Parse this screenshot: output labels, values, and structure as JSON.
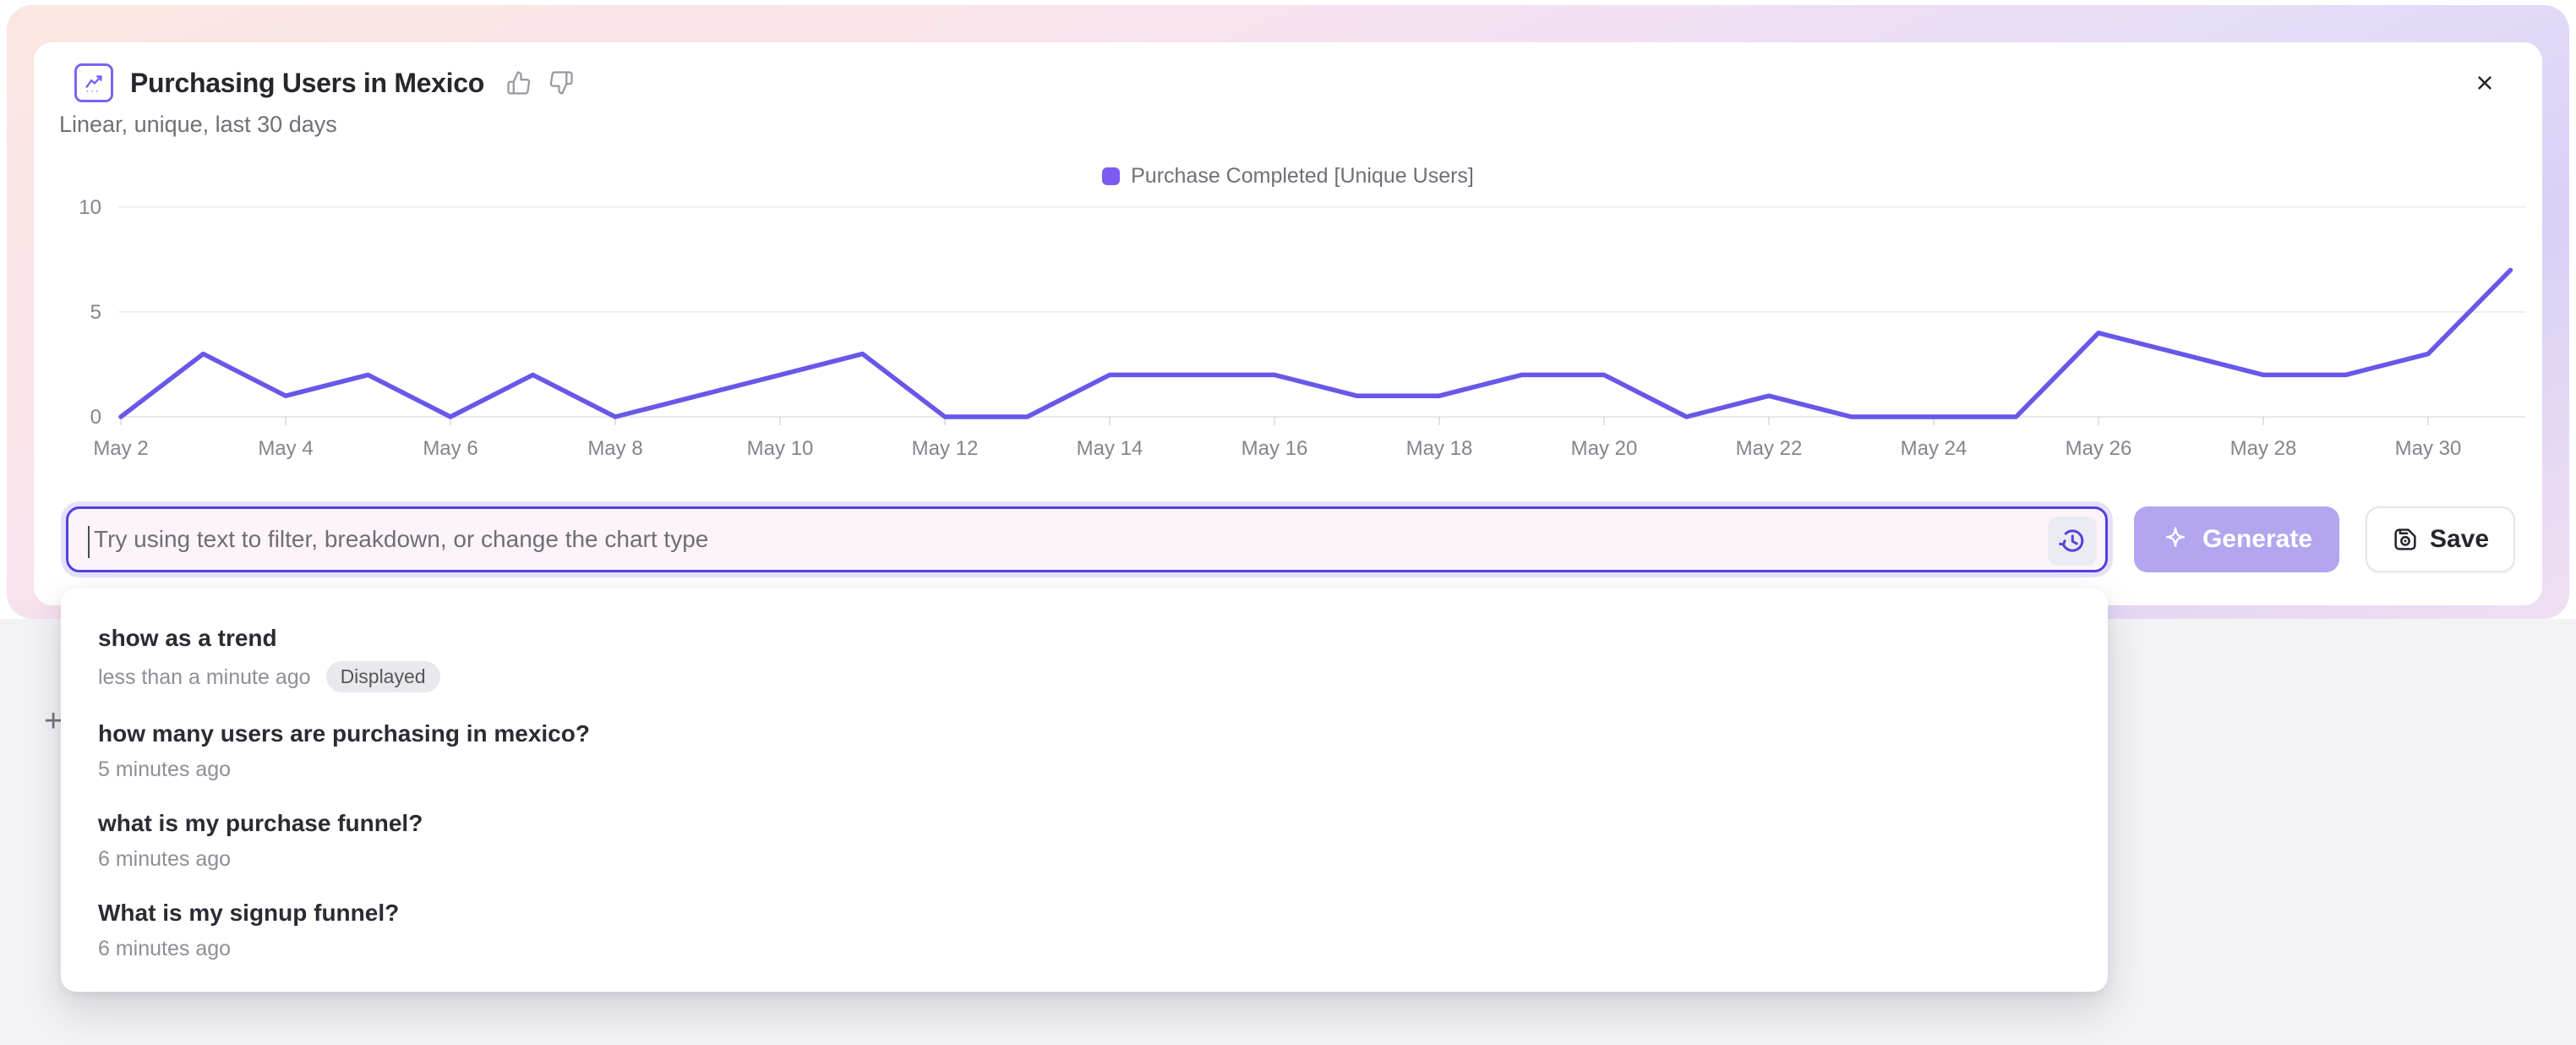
{
  "header": {
    "title": "Purchasing Users in Mexico",
    "subtitle": "Linear, unique, last 30 days",
    "close_label": "×"
  },
  "legend": {
    "label": "Purchase Completed [Unique Users]",
    "color": "#7c5bf2"
  },
  "chart_data": {
    "type": "line",
    "title": "Purchasing Users in Mexico",
    "x": [
      "May 2",
      "May 3",
      "May 4",
      "May 5",
      "May 6",
      "May 7",
      "May 8",
      "May 9",
      "May 10",
      "May 11",
      "May 12",
      "May 13",
      "May 14",
      "May 15",
      "May 16",
      "May 17",
      "May 18",
      "May 19",
      "May 20",
      "May 21",
      "May 22",
      "May 23",
      "May 24",
      "May 25",
      "May 26",
      "May 27",
      "May 28",
      "May 29",
      "May 30",
      "May 31"
    ],
    "x_tick_labels": [
      "May 2",
      "May 4",
      "May 6",
      "May 8",
      "May 10",
      "May 12",
      "May 14",
      "May 16",
      "May 18",
      "May 20",
      "May 22",
      "May 24",
      "May 26",
      "May 28",
      "May 30"
    ],
    "series": [
      {
        "name": "Purchase Completed [Unique Users]",
        "color": "#6857e8",
        "values": [
          0,
          3,
          1,
          2,
          0,
          2,
          0,
          1,
          2,
          3,
          0,
          0,
          2,
          2,
          2,
          1,
          1,
          2,
          2,
          0,
          1,
          0,
          0,
          0,
          4,
          3,
          2,
          2,
          3,
          7
        ]
      }
    ],
    "ylim": [
      0,
      10
    ],
    "yticks": [
      0,
      5,
      10
    ],
    "grid": "horizontal",
    "legend_position": "top-center"
  },
  "prompt_bar": {
    "placeholder": "Try using text to filter, breakdown, or change the chart type",
    "value": "",
    "generate_label": "Generate",
    "save_label": "Save"
  },
  "history_dropdown": {
    "items": [
      {
        "query": "show as a trend",
        "time": "less than a minute ago",
        "badge": "Displayed"
      },
      {
        "query": "how many users are purchasing in mexico?",
        "time": "5 minutes ago"
      },
      {
        "query": "what is my purchase funnel?",
        "time": "6 minutes ago"
      },
      {
        "query": "What is my signup funnel?",
        "time": "6 minutes ago"
      }
    ]
  },
  "misc": {
    "plus": "+"
  },
  "colors": {
    "accent_indigo": "#4f41e0",
    "line_purple": "#6857e8",
    "generate_bg": "#b3a6ef",
    "input_bg": "#fdf4f9",
    "page_lower_bg": "#f3f3f5"
  }
}
